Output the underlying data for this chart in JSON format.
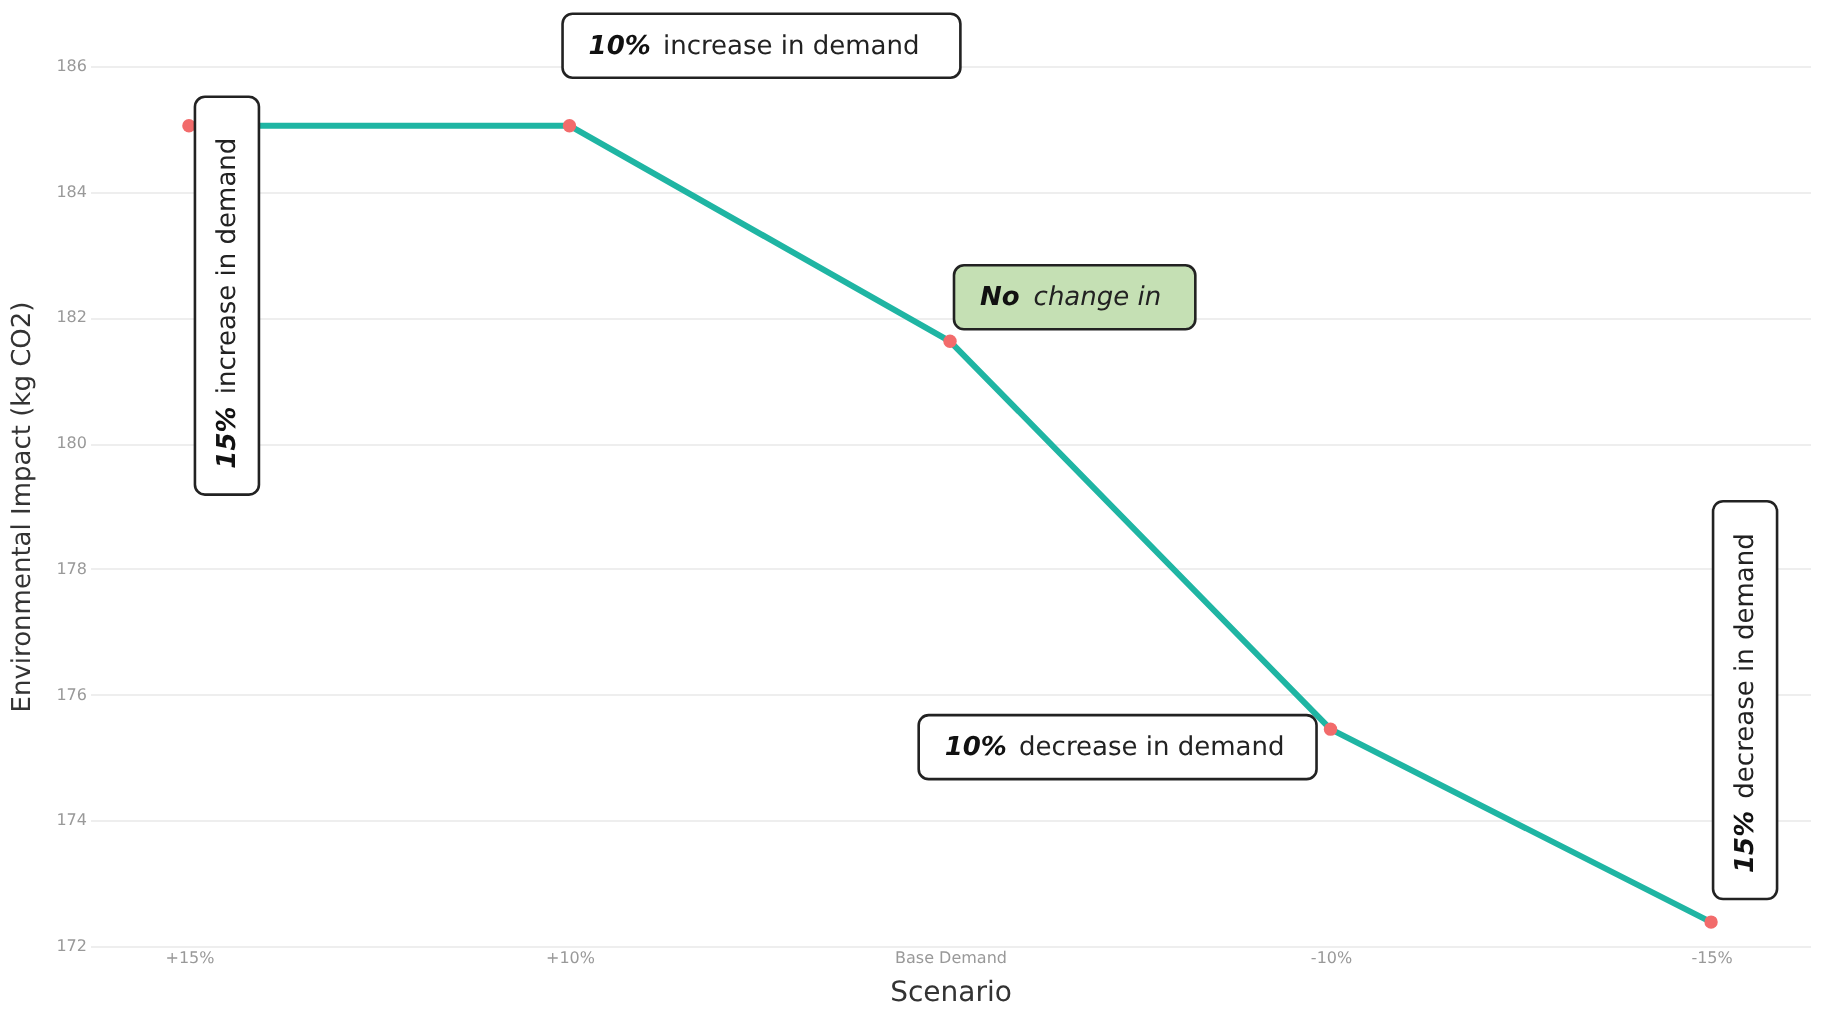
{
  "chart_data": {
    "type": "line",
    "xlabel": "Scenario",
    "ylabel": "Environmental Impact (kg CO2)",
    "categories": [
      "+15%",
      "+10%",
      "Base Demand",
      "-10%",
      "-15%"
    ],
    "series": [
      {
        "color": "#1fb5a3",
        "colors": [
          "#f26b6b",
          "#f26b6b",
          "#f26b6b",
          "#f26b6b",
          "#f26b6b"
        ],
        "values": [
          185.05,
          185.05,
          181.62,
          175.45,
          172.38
        ]
      }
    ],
    "ylim": [
      172,
      186
    ],
    "yticks": [
      172,
      174,
      176,
      178,
      180,
      182,
      184,
      186
    ],
    "grid": "y",
    "marker": "circle",
    "line_style": "solid",
    "annotations": [
      {
        "text": "15% increase in demand",
        "x": "+15%",
        "y": 185.05
      },
      {
        "text": "10% increase in demand",
        "x": "+10%",
        "y": 185.05
      },
      {
        "text": "No change in",
        "x": "Base Demand",
        "y": 181.62
      },
      {
        "text": "10% decrease in demand",
        "x": "-10%",
        "y": 175.45
      },
      {
        "text": "15% decrease in demand",
        "x": "-15%",
        "y": 172.38
      }
    ]
  }
}
